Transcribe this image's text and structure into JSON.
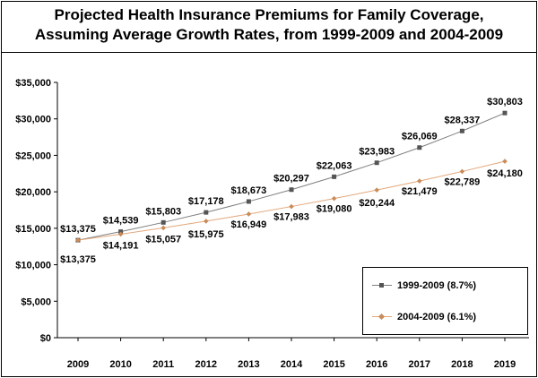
{
  "chart_data": {
    "type": "line",
    "title_line1": "Projected Health Insurance Premiums for Family Coverage,",
    "title_line2": "Assuming Average Growth Rates, from 1999-2009 and 2004-2009",
    "categories": [
      "2009",
      "2010",
      "2011",
      "2012",
      "2013",
      "2014",
      "2015",
      "2016",
      "2017",
      "2018",
      "2019"
    ],
    "ylim": [
      0,
      35000
    ],
    "yticks": [
      0,
      5000,
      10000,
      15000,
      20000,
      25000,
      30000,
      35000
    ],
    "ytick_labels": [
      "$0",
      "$5,000",
      "$10,000",
      "$15,000",
      "$20,000",
      "$25,000",
      "$30,000",
      "$35,000"
    ],
    "grid": false,
    "legend_position": "bottom-right",
    "series": [
      {
        "name": "1999-2009 (8.7%)",
        "color": "#7f7f7f",
        "marker": "square",
        "values": [
          13375,
          14539,
          15803,
          17178,
          18673,
          20297,
          22063,
          23983,
          26069,
          28337,
          30803
        ],
        "labels": [
          "$13,375",
          "$14,539",
          "$15,803",
          "$17,178",
          "$18,673",
          "$20,297",
          "$22,063",
          "$23,983",
          "$26,069",
          "$28,337",
          "$30,803"
        ]
      },
      {
        "name": "2004-2009 (6.1%)",
        "color": "#e3a77a",
        "marker_color": "#c98b5a",
        "marker": "diamond",
        "values": [
          13375,
          14191,
          15057,
          15975,
          16949,
          17983,
          19080,
          20244,
          21479,
          22789,
          24180
        ],
        "labels": [
          "$13,375",
          "$14,191",
          "$15,057",
          "$15,975",
          "$16,949",
          "$17,983",
          "$19,080",
          "$20,244",
          "$21,479",
          "$22,789",
          "$24,180"
        ]
      }
    ]
  }
}
